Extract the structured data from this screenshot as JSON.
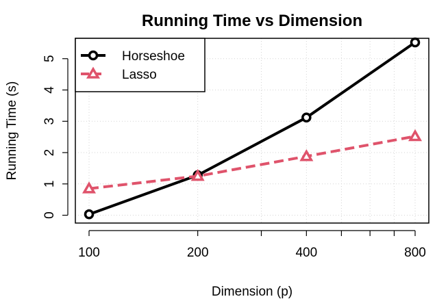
{
  "chart_data": {
    "type": "line",
    "title": "Running Time vs Dimension",
    "xlabel": "Dimension (p)",
    "ylabel": "Running Time (s)",
    "x": [
      100,
      200,
      400,
      800
    ],
    "x_scale": "log",
    "x_ticks": [
      "100",
      "200",
      "400",
      "800"
    ],
    "y_ticks": [
      "0",
      "1",
      "2",
      "3",
      "4",
      "5"
    ],
    "ylim": [
      -0.25,
      5.65
    ],
    "grid": true,
    "legend_position": "top-left",
    "series": [
      {
        "name": "Horseshoe",
        "values": [
          0.03,
          1.28,
          3.12,
          5.52
        ],
        "color": "#000000",
        "line_style": "solid",
        "marker": "circle"
      },
      {
        "name": "Lasso",
        "values": [
          0.85,
          1.25,
          1.88,
          2.52
        ],
        "color": "#df536b",
        "line_style": "dashed",
        "marker": "triangle"
      }
    ]
  }
}
